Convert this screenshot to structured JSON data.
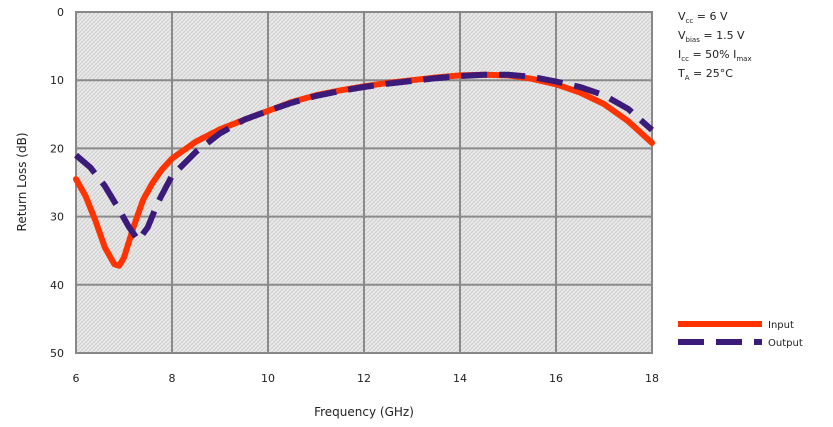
{
  "conditions": [
    {
      "main": "V",
      "sub": "cc",
      "rest": " = 6 V",
      "sub2": "",
      "tail": ""
    },
    {
      "main": "V",
      "sub": "bias",
      "rest": " = 1.5 V",
      "sub2": "",
      "tail": ""
    },
    {
      "main": "I",
      "sub": "cc",
      "rest": " = 50% I",
      "sub2": "max",
      "tail": ""
    },
    {
      "main": "T",
      "sub": "A",
      "rest": " = 25°C",
      "sub2": "",
      "tail": ""
    }
  ],
  "chart_data": {
    "type": "line",
    "title": "",
    "xlabel": "Frequency (GHz)",
    "ylabel": "Return Loss (dB)",
    "xlim": [
      6,
      18
    ],
    "ylim": [
      0,
      50
    ],
    "y_inverted": true,
    "x_ticks": [
      6,
      8,
      10,
      12,
      14,
      16,
      18
    ],
    "y_ticks": [
      0,
      10,
      20,
      30,
      40,
      50
    ],
    "grid": true,
    "legend_position": "bottom-right",
    "series": [
      {
        "name": "Input",
        "color": "#ff3300",
        "dash": "solid",
        "x": [
          6.0,
          6.2,
          6.4,
          6.6,
          6.8,
          6.9,
          7.0,
          7.2,
          7.4,
          7.6,
          7.8,
          8.0,
          8.5,
          9.0,
          9.5,
          10.0,
          10.5,
          11.0,
          11.5,
          12.0,
          12.5,
          13.0,
          13.5,
          14.0,
          14.5,
          15.0,
          15.5,
          16.0,
          16.5,
          17.0,
          17.5,
          18.0
        ],
        "y": [
          24.5,
          27.0,
          30.5,
          34.5,
          37.0,
          37.2,
          36.0,
          31.5,
          27.5,
          25.0,
          23.0,
          21.5,
          19.0,
          17.2,
          15.8,
          14.5,
          13.2,
          12.2,
          11.5,
          10.9,
          10.4,
          10.0,
          9.6,
          9.3,
          9.2,
          9.3,
          9.8,
          10.6,
          11.8,
          13.5,
          16.0,
          19.2
        ]
      },
      {
        "name": "Output",
        "color": "#3b1a7a",
        "dash": "dashed",
        "x": [
          6.0,
          6.3,
          6.6,
          6.9,
          7.1,
          7.3,
          7.5,
          7.7,
          8.0,
          8.5,
          9.0,
          9.5,
          10.0,
          10.5,
          11.0,
          11.5,
          12.0,
          12.5,
          13.0,
          13.5,
          14.0,
          14.5,
          15.0,
          15.5,
          16.0,
          16.5,
          17.0,
          17.5,
          18.0
        ],
        "y": [
          21.0,
          22.8,
          25.5,
          29.0,
          31.5,
          33.5,
          31.5,
          28.0,
          24.0,
          20.5,
          17.8,
          15.8,
          14.5,
          13.3,
          12.3,
          11.6,
          11.0,
          10.5,
          10.1,
          9.7,
          9.4,
          9.2,
          9.2,
          9.5,
          10.2,
          11.0,
          12.2,
          14.2,
          17.3
        ]
      }
    ]
  }
}
